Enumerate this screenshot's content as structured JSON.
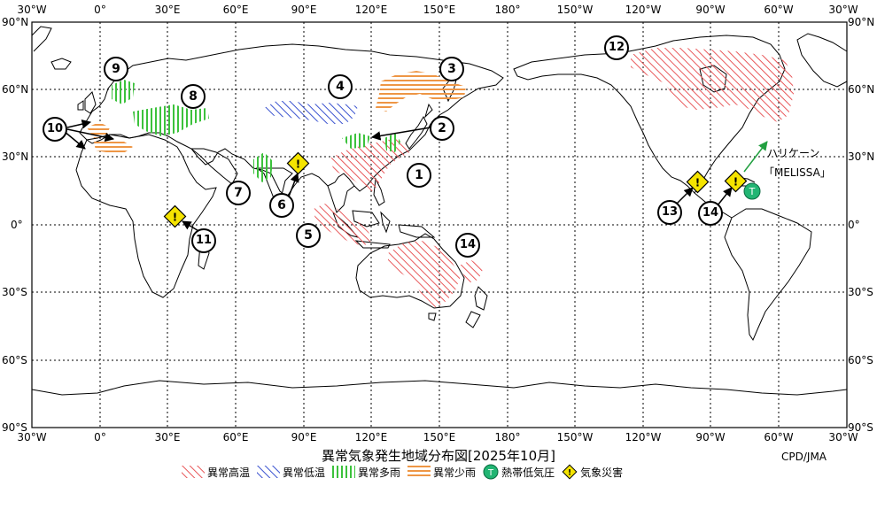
{
  "map": {
    "title": "異常気象発生地域分布図[2025年10月]",
    "credit": "CPD/JMA",
    "lon_ticks_top": [
      "30°W",
      "0°",
      "30°E",
      "60°E",
      "90°E",
      "120°E",
      "150°E",
      "180°",
      "150°W",
      "120°W",
      "90°W",
      "60°W",
      "30°W"
    ],
    "lon_ticks_bottom": [
      "30°W",
      "0°",
      "30°E",
      "60°E",
      "90°E",
      "120°E",
      "150°E",
      "180°",
      "150°W",
      "120°W",
      "90°W",
      "60°W",
      "30°W"
    ],
    "lat_ticks_left": [
      "90°N",
      "60°N",
      "30°N",
      "0°",
      "30°S",
      "60°S",
      "90°S"
    ],
    "lat_ticks_right": [
      "90°N",
      "60°N",
      "30°N",
      "0°",
      "30°S",
      "60°S",
      "90°S"
    ],
    "hurricane_label_1": "ハリケーン",
    "hurricane_label_2": "「MELISSA」",
    "tc_symbol": "T",
    "disaster_symbol": "!",
    "markers": {
      "m1": "1",
      "m2": "2",
      "m3": "3",
      "m4": "4",
      "m5": "5",
      "m6": "6",
      "m7": "7",
      "m8": "8",
      "m9": "9",
      "m10": "10",
      "m11": "11",
      "m12": "12",
      "m13": "13",
      "m14a": "14",
      "m14b": "14"
    }
  },
  "legend": {
    "high_temp": "異常高温",
    "low_temp": "異常低温",
    "heavy_rain": "異常多雨",
    "light_rain": "異常少雨",
    "tropical_cyclone": "熱帯低気圧",
    "weather_disaster": "気象災害"
  },
  "colors": {
    "high_temp": "#e8585a",
    "low_temp": "#3c54d0",
    "heavy_rain": "#3cc23c",
    "light_rain": "#ee9645",
    "tropical_cyclone": "#22b573",
    "weather_disaster": "#f5e400",
    "arrow_green": "#22a040"
  }
}
